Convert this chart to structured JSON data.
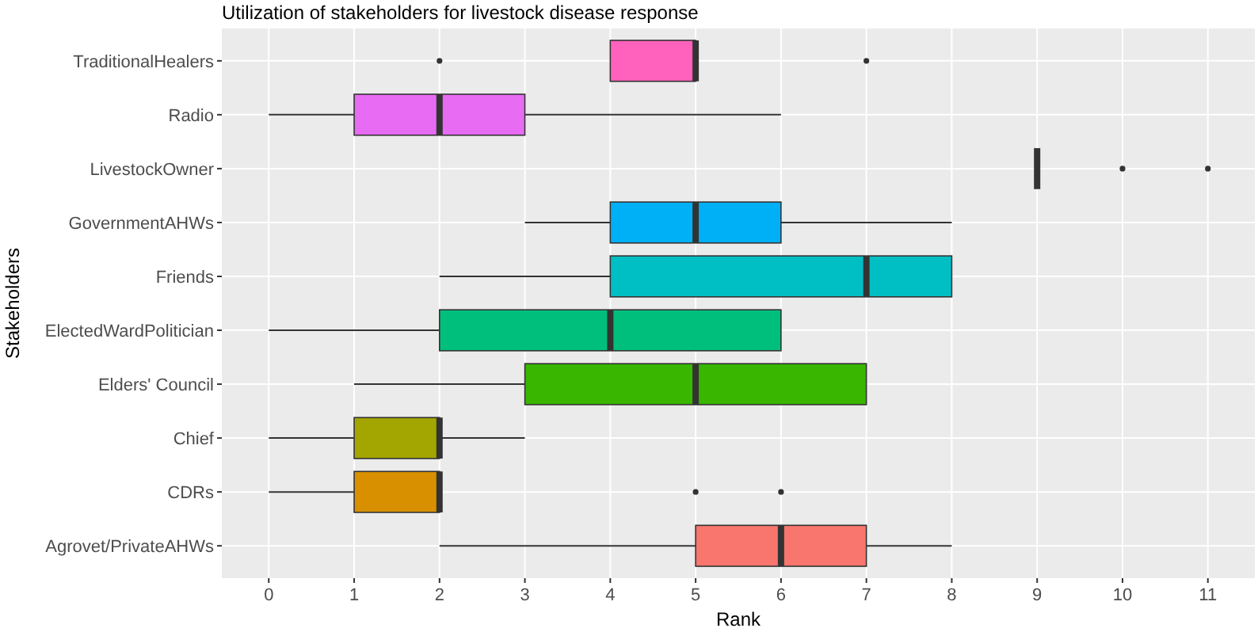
{
  "chart_data": {
    "type": "box",
    "orientation": "horizontal",
    "title": "Utilization of stakeholders for livestock disease response",
    "xlabel": "Rank",
    "ylabel": "Stakeholders",
    "categories": [
      "TraditionalHealers",
      "Radio",
      "LivestockOwner",
      "GovernmentAHWs",
      "Friends",
      "ElectedWardPolitician",
      "Elders' Council",
      "Chief",
      "CDRs",
      "Agrovet/PrivateAHWs"
    ],
    "colors": [
      "#ff62bc",
      "#e76bf3",
      "#333333",
      "#00b0f6",
      "#00bfc4",
      "#00bf7d",
      "#39b600",
      "#a3a500",
      "#d89000",
      "#f8766d"
    ],
    "boxes": [
      {
        "low": 4,
        "q1": 4,
        "median": 5,
        "q3": 5,
        "high": 5,
        "outliers": [
          2,
          7
        ]
      },
      {
        "low": 0,
        "q1": 1,
        "median": 2,
        "q3": 3,
        "high": 6
      },
      {
        "low": 9,
        "q1": 9,
        "median": 9,
        "q3": 9,
        "high": 9,
        "outliers": [
          10,
          11
        ]
      },
      {
        "low": 3,
        "q1": 4,
        "median": 5,
        "q3": 6,
        "high": 8
      },
      {
        "low": 2,
        "q1": 4,
        "median": 7,
        "q3": 8,
        "high": 8
      },
      {
        "low": 0,
        "q1": 2,
        "median": 4,
        "q3": 6,
        "high": 6
      },
      {
        "low": 1,
        "q1": 3,
        "median": 5,
        "q3": 7,
        "high": 7
      },
      {
        "low": 0,
        "q1": 1,
        "median": 2,
        "q3": 2,
        "high": 3
      },
      {
        "low": 0,
        "q1": 1,
        "median": 2,
        "q3": 2,
        "high": 2,
        "outliers": [
          5,
          6
        ]
      },
      {
        "low": 2,
        "q1": 5,
        "median": 6,
        "q3": 7,
        "high": 8
      }
    ],
    "xlim": [
      -0.55,
      11.55
    ],
    "xticks": [
      0,
      1,
      2,
      3,
      4,
      5,
      6,
      7,
      8,
      9,
      10,
      11
    ],
    "grid": true,
    "legend": false
  }
}
